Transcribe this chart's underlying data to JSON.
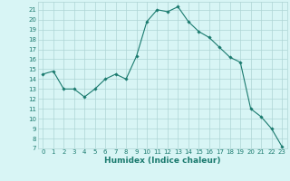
{
  "x": [
    0,
    1,
    2,
    3,
    4,
    5,
    6,
    7,
    8,
    9,
    10,
    11,
    12,
    13,
    14,
    15,
    16,
    17,
    18,
    19,
    20,
    21,
    22,
    23
  ],
  "y": [
    14.5,
    14.8,
    13.0,
    13.0,
    12.2,
    13.0,
    14.0,
    14.5,
    14.0,
    16.3,
    19.8,
    21.0,
    20.8,
    21.3,
    19.8,
    18.8,
    18.2,
    17.2,
    16.2,
    15.7,
    11.0,
    10.2,
    9.0,
    7.2
  ],
  "line_color": "#1a7a6e",
  "marker": "D",
  "marker_size": 1.8,
  "linewidth": 0.8,
  "bg_color": "#d8f5f5",
  "grid_color": "#aed4d4",
  "xlabel": "Humidex (Indice chaleur)",
  "ylim": [
    7,
    21.8
  ],
  "xlim": [
    -0.5,
    23.5
  ],
  "yticks": [
    7,
    8,
    9,
    10,
    11,
    12,
    13,
    14,
    15,
    16,
    17,
    18,
    19,
    20,
    21
  ],
  "xticks": [
    0,
    1,
    2,
    3,
    4,
    5,
    6,
    7,
    8,
    9,
    10,
    11,
    12,
    13,
    14,
    15,
    16,
    17,
    18,
    19,
    20,
    21,
    22,
    23
  ],
  "tick_fontsize": 5.0,
  "xlabel_fontsize": 6.5,
  "xlabel_bold": true
}
